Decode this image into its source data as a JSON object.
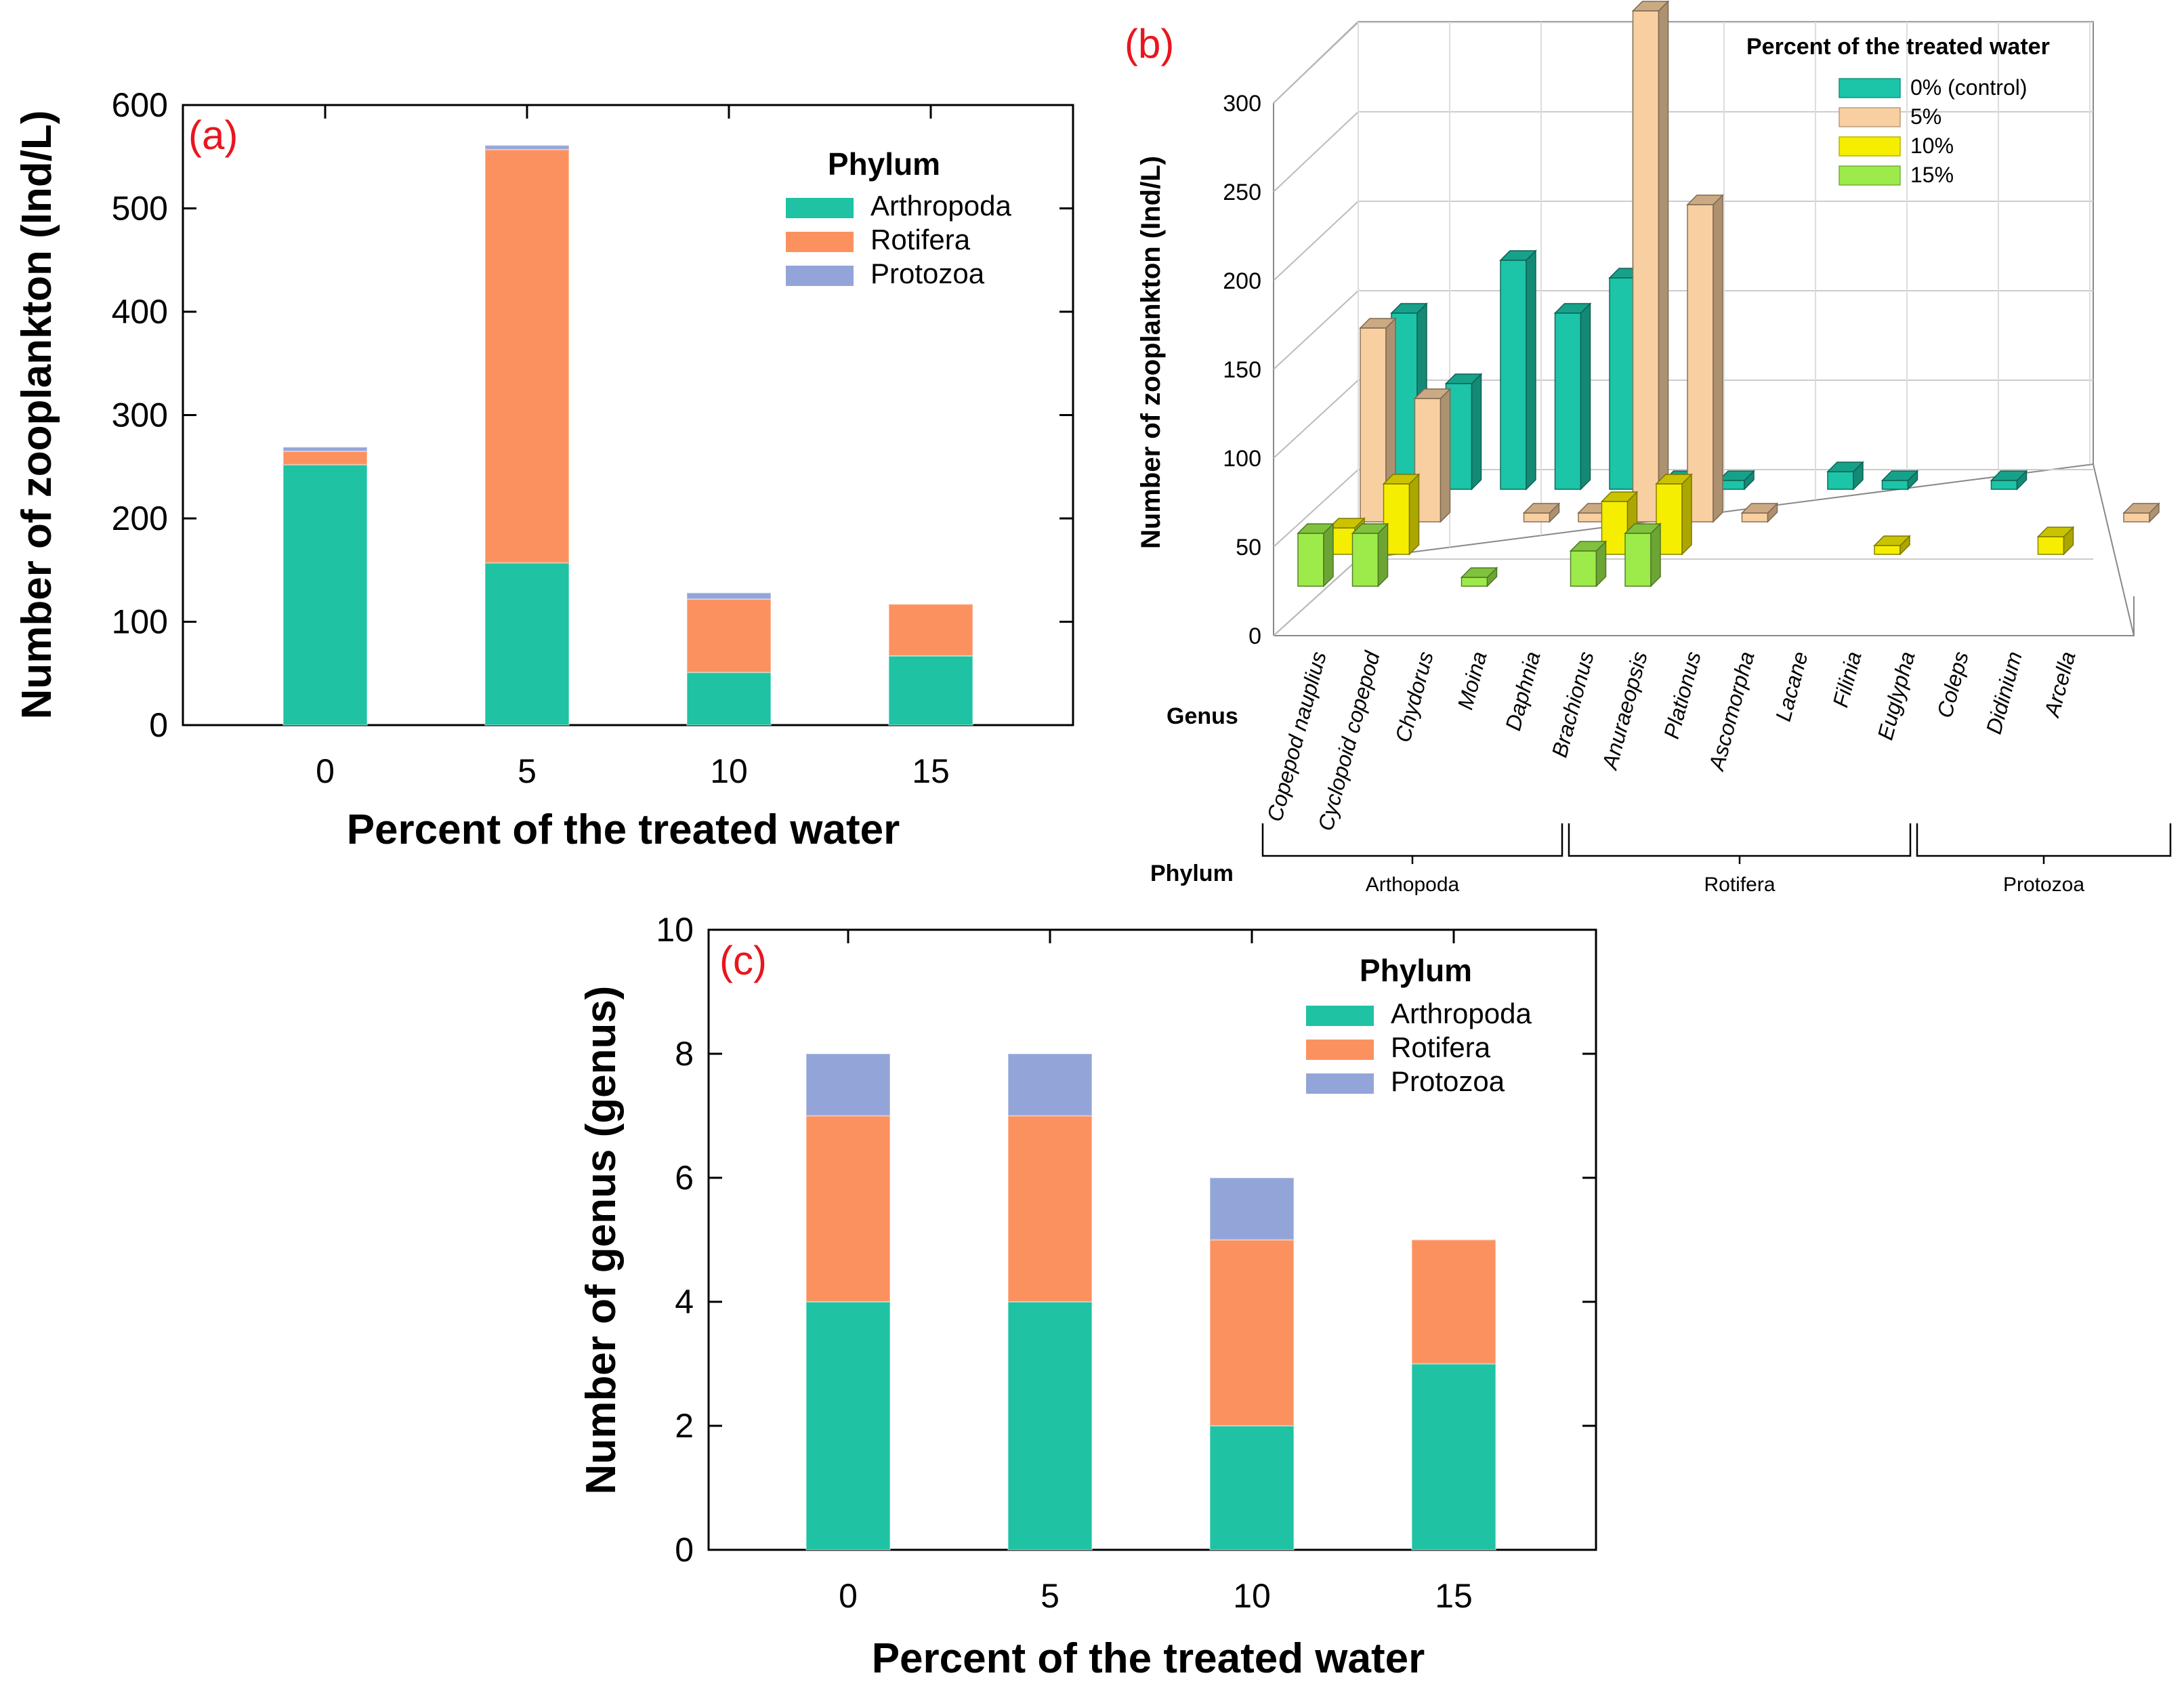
{
  "chart_data": [
    {
      "type": "bar",
      "stacked": true,
      "panel_label": "(a)",
      "categories": [
        "0",
        "5",
        "10",
        "15"
      ],
      "series": [
        {
          "name": "Arthropoda",
          "values": [
            252,
            157,
            51,
            67
          ]
        },
        {
          "name": "Rotifera",
          "values": [
            13,
            400,
            71,
            50
          ]
        },
        {
          "name": "Protozoa",
          "values": [
            4,
            4,
            6,
            0
          ]
        }
      ],
      "xlabel": "Percent of the treated water",
      "ylabel": "Number of zooplankton (Ind/L)",
      "ylim": [
        0,
        600
      ],
      "yticks": [
        "0",
        "100",
        "200",
        "300",
        "400",
        "500",
        "600"
      ],
      "legend_title": "Phylum",
      "legend_position": "top-right",
      "colors": {
        "Arthropoda": "#1fc2a2",
        "Rotifera": "#fc9160",
        "Protozoa": "#93a5d8"
      }
    },
    {
      "type": "bar3d",
      "panel_label": "(b)",
      "genera": [
        "Copepod nauplius",
        "Cyclopoid copepod",
        "Chydorus",
        "Moina",
        "Daphnia",
        "Brachionus",
        "Anuraeopsis",
        "Plationus",
        "Ascomorpha",
        "Lacane",
        "Filinia",
        "Euglypha",
        "Coleps",
        "Didinium",
        "Arcella"
      ],
      "phyla": [
        {
          "name": "Arthopoda",
          "count": 5
        },
        {
          "name": "Rotifera",
          "count": 6
        },
        {
          "name": "Protozoa",
          "count": 4
        }
      ],
      "series": [
        {
          "name": "0% (control)",
          "values": [
            100,
            60,
            130,
            100,
            120,
            5,
            5,
            0,
            10,
            5,
            0,
            5,
            0,
            0,
            0
          ]
        },
        {
          "name": "5%",
          "values": [
            110,
            70,
            0,
            5,
            5,
            290,
            180,
            5,
            0,
            0,
            0,
            0,
            0,
            0,
            5
          ]
        },
        {
          "name": "10%",
          "values": [
            15,
            40,
            0,
            0,
            0,
            30,
            40,
            0,
            0,
            0,
            5,
            0,
            0,
            10,
            0
          ]
        },
        {
          "name": "15%",
          "values": [
            30,
            30,
            0,
            5,
            0,
            20,
            30,
            0,
            0,
            0,
            0,
            0,
            0,
            0,
            0
          ]
        }
      ],
      "ylabel": "Number of zooplankton (Ind/L)",
      "ylim": [
        0,
        300
      ],
      "yticks": [
        "0",
        "50",
        "100",
        "150",
        "200",
        "250",
        "300"
      ],
      "row_labels": {
        "genus": "Genus",
        "phylum": "Phylum"
      },
      "legend_title": "Percent of the treated water",
      "legend_position": "top-right",
      "colors": {
        "0% (control)": "#1cc4a8",
        "5%": "#f8cfa0",
        "10%": "#f6ee00",
        "15%": "#9ceb4a"
      }
    },
    {
      "type": "bar",
      "stacked": true,
      "panel_label": "(c)",
      "categories": [
        "0",
        "5",
        "10",
        "15"
      ],
      "series": [
        {
          "name": "Arthropoda",
          "values": [
            4,
            4,
            2,
            3
          ]
        },
        {
          "name": "Rotifera",
          "values": [
            3,
            3,
            3,
            2
          ]
        },
        {
          "name": "Protozoa",
          "values": [
            1,
            1,
            1,
            0
          ]
        }
      ],
      "xlabel": "Percent of the treated water",
      "ylabel": "Number of genus (genus)",
      "ylim": [
        0,
        10
      ],
      "yticks": [
        "0",
        "2",
        "4",
        "6",
        "8",
        "10"
      ],
      "legend_title": "Phylum",
      "legend_position": "top-right",
      "colors": {
        "Arthropoda": "#1fc2a2",
        "Rotifera": "#fc9160",
        "Protozoa": "#93a5d8"
      }
    }
  ]
}
